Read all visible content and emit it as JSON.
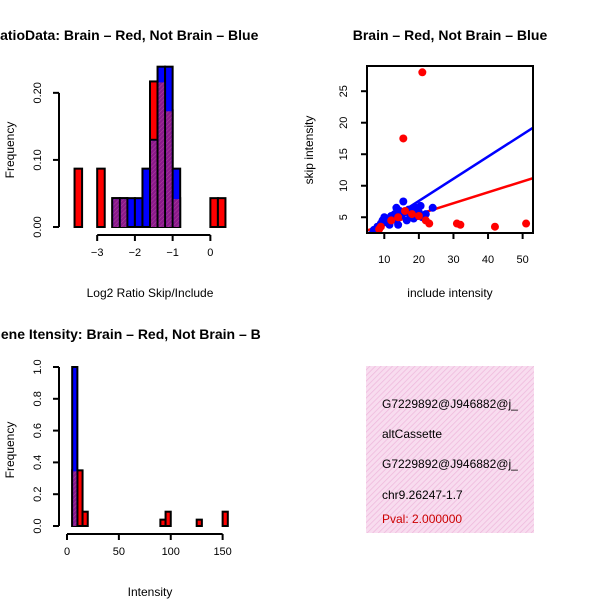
{
  "colors": {
    "red": "#ff0000",
    "blue": "#0000ff",
    "purple": "#8b1a8b",
    "hatch_bg": "#f8dcef",
    "hatch_line": "#eeb8dc",
    "pval": "#cc0000"
  },
  "chart_data": [
    {
      "id": "ratio",
      "type": "bar",
      "title": "RatioData: Brain – Red, Not Brain – Blue",
      "xlabel": "Log2 Ratio Skip/Include",
      "ylabel": "Frequency",
      "xlim": [
        -3.8,
        0.6
      ],
      "ylim": [
        0,
        0.24
      ],
      "xticks": [
        -3,
        -2,
        -1,
        0
      ],
      "xtick_labels": [
        "−3",
        "−2",
        "−1",
        "0"
      ],
      "yticks": [
        0,
        0.1,
        0.2
      ],
      "ytick_labels": [
        "0.00",
        "0.10",
        "0.20"
      ],
      "bin_width": 0.2,
      "series": [
        {
          "name": "Brain",
          "color": "red",
          "bins": [
            [
              -3.6,
              0.087
            ],
            [
              -3.0,
              0.087
            ],
            [
              -2.6,
              0.043
            ],
            [
              -2.4,
              0.043
            ],
            [
              -1.6,
              0.217
            ],
            [
              -1.4,
              0.217
            ],
            [
              -1.2,
              0.174
            ],
            [
              -1.0,
              0.043
            ],
            [
              0.0,
              0.043
            ],
            [
              0.2,
              0.043
            ]
          ]
        },
        {
          "name": "Not Brain",
          "color": "blue",
          "bins": [
            [
              -2.6,
              0.043
            ],
            [
              -2.4,
              0.043
            ],
            [
              -2.2,
              0.043
            ],
            [
              -2.0,
              0.043
            ],
            [
              -1.8,
              0.087
            ],
            [
              -1.6,
              0.13
            ],
            [
              -1.4,
              0.239
            ],
            [
              -1.2,
              0.239
            ],
            [
              -1.0,
              0.087
            ]
          ]
        }
      ]
    },
    {
      "id": "scatter",
      "type": "scatter",
      "title": "Brain – Red, Not Brain – Blue",
      "xlabel": "include intensity",
      "ylabel": "skip intensity",
      "xlim": [
        5,
        53
      ],
      "ylim": [
        2.5,
        29
      ],
      "xticks": [
        10,
        20,
        30,
        40,
        50
      ],
      "yticks": [
        5,
        10,
        15,
        20,
        25
      ],
      "series": [
        {
          "name": "Brain",
          "color": "red",
          "points": [
            [
              21,
              28
            ],
            [
              15.5,
              17.5
            ],
            [
              51,
              4
            ],
            [
              42,
              3.5
            ],
            [
              31,
              4
            ],
            [
              32,
              3.8
            ],
            [
              23,
              4
            ],
            [
              14,
              5
            ],
            [
              12,
              4.5
            ],
            [
              9,
              3.5
            ],
            [
              8.5,
              3.1
            ],
            [
              18,
              5.5
            ],
            [
              16,
              6
            ],
            [
              20,
              5.2
            ],
            [
              22,
              4.5
            ]
          ],
          "fit": [
            [
              5,
              2.9
            ],
            [
              53,
              11.2
            ]
          ]
        },
        {
          "name": "Not Brain",
          "color": "blue",
          "points": [
            [
              7,
              3
            ],
            [
              8,
              3.5
            ],
            [
              9,
              4
            ],
            [
              9.5,
              4.5
            ],
            [
              10,
              5
            ],
            [
              10.5,
              4.2
            ],
            [
              11,
              4.8
            ],
            [
              12,
              5.2
            ],
            [
              12.5,
              4.6
            ],
            [
              13,
              5.5
            ],
            [
              13.5,
              6.5
            ],
            [
              14,
              5
            ],
            [
              14.5,
              6
            ],
            [
              15,
              5.3
            ],
            [
              15.5,
              7.5
            ],
            [
              16,
              5.8
            ],
            [
              16.5,
              4.5
            ],
            [
              17,
              6.2
            ],
            [
              17.5,
              5
            ],
            [
              18,
              5.5
            ],
            [
              18.5,
              4.8
            ],
            [
              19,
              6.5
            ],
            [
              19.5,
              5.2
            ],
            [
              20,
              5.8
            ],
            [
              20.5,
              6.8
            ],
            [
              21,
              5
            ],
            [
              22,
              5.5
            ],
            [
              24,
              6.5
            ],
            [
              11.5,
              3.8
            ],
            [
              14,
              3.8
            ]
          ],
          "fit": [
            [
              5,
              2.3
            ],
            [
              53,
              19.2
            ]
          ]
        }
      ]
    },
    {
      "id": "intensity",
      "type": "bar",
      "title": "Gene Itensity: Brain – Red, Not Brain – B",
      "xlabel": "Intensity",
      "ylabel": "Frequency",
      "xlim": [
        0,
        160
      ],
      "ylim": [
        0,
        1.0
      ],
      "xticks": [
        0,
        50,
        100,
        150
      ],
      "yticks": [
        0,
        0.2,
        0.4,
        0.6,
        0.8,
        1.0
      ],
      "ytick_labels": [
        "0.0",
        "0.2",
        "0.4",
        "0.6",
        "0.8",
        "1.0"
      ],
      "bin_width": 5,
      "series": [
        {
          "name": "Brain",
          "color": "red",
          "bins": [
            [
              5,
              0.35
            ],
            [
              10,
              0.35
            ],
            [
              15,
              0.09
            ],
            [
              90,
              0.04
            ],
            [
              95,
              0.09
            ],
            [
              125,
              0.04
            ],
            [
              150,
              0.09
            ]
          ]
        },
        {
          "name": "Not Brain",
          "color": "blue",
          "bins": [
            [
              5,
              1.0
            ]
          ]
        }
      ]
    }
  ],
  "info_box": {
    "lines": [
      "G7229892@J946882@j_",
      "altCassette",
      "G7229892@J946882@j_",
      "chr9.26247-1.7"
    ],
    "pval": "Pval: 2.000000"
  }
}
